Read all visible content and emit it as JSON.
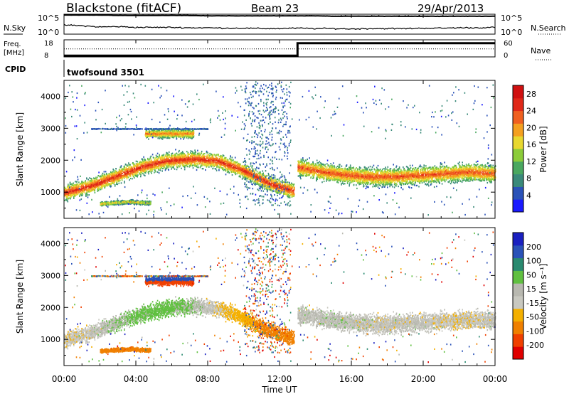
{
  "header": {
    "station": "Blackstone (fitACF)",
    "beam": "Beam 23",
    "date": "29/Apr/2013"
  },
  "noise_panel": {
    "left_label": "N.Sky",
    "right_label": "N.Search",
    "tick_hi": "10^5",
    "tick_lo": "10^0"
  },
  "freq_panel": {
    "left_label_1": "Freq.",
    "left_label_2": "[MHz]",
    "left_ticks": [
      "18",
      "8"
    ],
    "right_label": "Nave",
    "right_ticks": [
      "60",
      "0"
    ]
  },
  "cpid": {
    "label": "CPID",
    "value": "twofsound 3501"
  },
  "x_axis": {
    "title": "Time UT",
    "ticks": [
      "00:00",
      "04:00",
      "08:00",
      "12:00",
      "16:00",
      "20:00",
      "00:00"
    ]
  },
  "colors": {
    "power_scale": [
      "#1a1aff",
      "#2a52b8",
      "#3a8a7a",
      "#4aa860",
      "#8ccc3a",
      "#e8d830",
      "#f4a020",
      "#f06020",
      "#e02818",
      "#d01010"
    ],
    "velocity_scale": [
      "#e00000",
      "#f04000",
      "#f08000",
      "#f4b000",
      "#c8c8c0",
      "#b8b8b0",
      "#60c040",
      "#2a8a70",
      "#2a52b8",
      "#1a20c0"
    ]
  },
  "chart_data": [
    {
      "type": "line",
      "title": "",
      "left_ylabel": "N.Sky",
      "right_ylabel": "N.Search",
      "yscale": "log",
      "ylim": [
        1,
        100000
      ],
      "xlim": [
        "00:00",
        "24:00"
      ],
      "series": [
        {
          "values_log10": [
            4.8,
            4.8,
            4.8,
            4.7,
            4.7,
            4.7,
            4.7,
            4.7,
            4.6,
            4.6,
            4.6,
            4.6,
            4.6,
            4.6,
            4.6,
            4.5,
            4.5,
            4.5,
            4.5,
            4.5,
            4.5,
            4.5,
            4.5,
            4.5,
            4.5
          ]
        },
        {
          "values_log10": [
            2.3,
            2.1,
            1.8,
            1.9,
            1.7,
            1.7,
            1.7,
            1.6,
            1.6,
            1.5,
            1.5,
            1.4,
            1.4,
            1.5,
            1.4,
            1.4,
            1.3,
            1.4,
            1.4,
            1.4,
            1.5,
            1.5,
            1.6,
            1.6,
            1.7
          ]
        }
      ]
    },
    {
      "type": "line",
      "title": "",
      "left_ylabel": "Freq. [MHz]",
      "right_ylabel": "Nave",
      "left_ylim": [
        8,
        18
      ],
      "left_ticks": [
        8,
        18
      ],
      "right_ylim": [
        0,
        60
      ],
      "right_ticks": [
        0,
        60
      ],
      "series": [
        {
          "x_hours": [
            0,
            13.0,
            13.0,
            24
          ],
          "values_freq_mhz": [
            8.7,
            8.7,
            16.0,
            16.0
          ]
        },
        {
          "x_hours": [
            0,
            24
          ],
          "values_nave": [
            28,
            28
          ]
        }
      ]
    },
    {
      "type": "heatmap",
      "title": "",
      "ylabel": "Slant Range [km]",
      "xlabel": "Time UT",
      "ylim": [
        180,
        4500
      ],
      "yticks": [
        1000,
        2000,
        3000,
        4000
      ],
      "colorbar_label": "Power [dB]",
      "colorbar_ticks": [
        4,
        8,
        12,
        16,
        20,
        24,
        28
      ],
      "colorbar_range": [
        0,
        30
      ],
      "features": [
        {
          "x_hours": [
            0,
            12.8
          ],
          "range_km_center": [
            1000,
            1200,
            1500,
            1800,
            2000,
            2050,
            2000,
            1700,
            1300,
            1050
          ],
          "band_width_km": 350,
          "power_db_peak": 26
        },
        {
          "x_hours": [
            2.0,
            4.8
          ],
          "range_km_center": [
            650,
            680,
            700,
            720,
            690,
            680
          ],
          "band_width_km": 90,
          "power_db_peak": 18
        },
        {
          "x_hours": [
            4.5,
            7.2
          ],
          "range_km_center": [
            2850,
            2850,
            2850,
            2850
          ],
          "band_width_km": 200,
          "power_db_peak": 22
        },
        {
          "x_hours": [
            13.0,
            24
          ],
          "range_km_center": [
            1800,
            1650,
            1550,
            1500,
            1500,
            1550,
            1600,
            1650,
            1600
          ],
          "band_width_km": 400,
          "power_db_peak": 24
        }
      ]
    },
    {
      "type": "heatmap",
      "title": "",
      "ylabel": "Slant Range [km]",
      "xlabel": "Time UT",
      "ylim": [
        180,
        4500
      ],
      "yticks": [
        1000,
        2000,
        3000,
        4000
      ],
      "colorbar_label": "Velocity [m s⁻¹]",
      "colorbar_ticks": [
        200,
        100,
        50,
        15,
        -15,
        -50,
        -100,
        -200
      ],
      "colorbar_range": [
        -250,
        250
      ],
      "features": [
        {
          "x_hours": [
            0,
            12.8
          ],
          "velocity_ms_typical": [
            -10,
            0,
            20,
            30,
            10,
            -20,
            -60,
            -80
          ]
        },
        {
          "x_hours": [
            2.0,
            4.8
          ],
          "velocity_ms_typical": [
            -80,
            -90,
            -80
          ]
        },
        {
          "x_hours": [
            4.5,
            7.2
          ],
          "velocity_ms_typical": [
            150,
            60,
            -80,
            -150
          ]
        },
        {
          "x_hours": [
            13.0,
            24
          ],
          "velocity_ms_typical": [
            0,
            5,
            -5,
            0,
            -10,
            0
          ]
        }
      ]
    }
  ]
}
